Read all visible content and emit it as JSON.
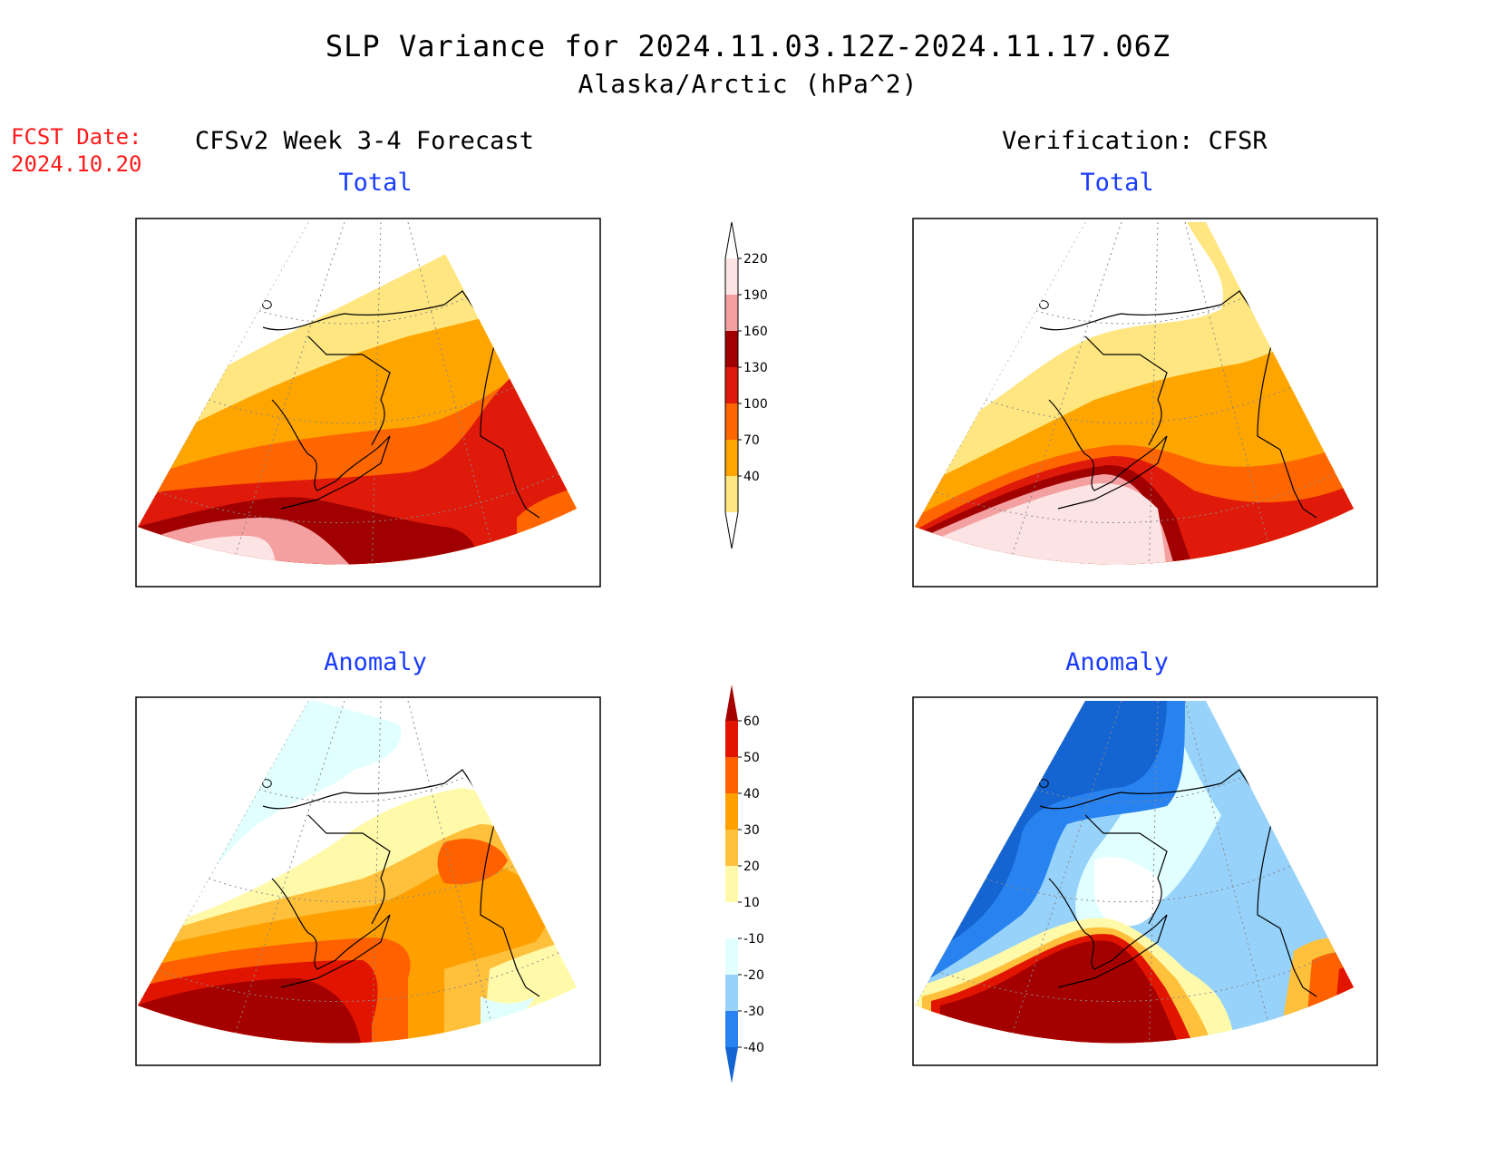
{
  "title": "SLP Variance for 2024.11.03.12Z-2024.11.17.06Z",
  "subtitle": "Alaska/Arctic (hPa^2)",
  "fcst_date_label": "FCST Date:",
  "fcst_date_value": "2024.10.20",
  "left_column_title": "CFSv2 Week 3-4 Forecast",
  "right_column_title": "Verification: CFSR",
  "chart_data": [
    {
      "type": "heatmap",
      "panel": "forecast-total",
      "title": "Total",
      "colorbar_levels": [
        40,
        70,
        100,
        130,
        160,
        190,
        220
      ],
      "colors": [
        "#ffe680",
        "#ffa500",
        "#ff6600",
        "#e01a0a",
        "#a00000",
        "#f4a0a0",
        "#fde4e4"
      ]
    },
    {
      "type": "heatmap",
      "panel": "verification-total",
      "title": "Total",
      "colorbar_levels": [
        40,
        70,
        100,
        130,
        160,
        190,
        220
      ],
      "colors": [
        "#ffe680",
        "#ffa500",
        "#ff6600",
        "#e01a0a",
        "#a00000",
        "#f4a0a0",
        "#fde4e4"
      ]
    },
    {
      "type": "heatmap",
      "panel": "forecast-anomaly",
      "title": "Anomaly",
      "colorbar_levels": [
        -40,
        -30,
        -20,
        -10,
        10,
        20,
        30,
        40,
        50,
        60
      ],
      "colors": [
        "#1464d2",
        "#2882f0",
        "#96d2fa",
        "#e1ffff",
        "#ffffff",
        "#fffaaa",
        "#ffc03c",
        "#ffa000",
        "#ff6000",
        "#e11400",
        "#a50000"
      ]
    },
    {
      "type": "heatmap",
      "panel": "verification-anomaly",
      "title": "Anomaly",
      "colorbar_levels": [
        -40,
        -30,
        -20,
        -10,
        10,
        20,
        30,
        40,
        50,
        60
      ],
      "colors": [
        "#1464d2",
        "#2882f0",
        "#96d2fa",
        "#e1ffff",
        "#ffffff",
        "#fffaaa",
        "#ffc03c",
        "#ffa000",
        "#ff6000",
        "#e11400",
        "#a50000"
      ]
    }
  ]
}
